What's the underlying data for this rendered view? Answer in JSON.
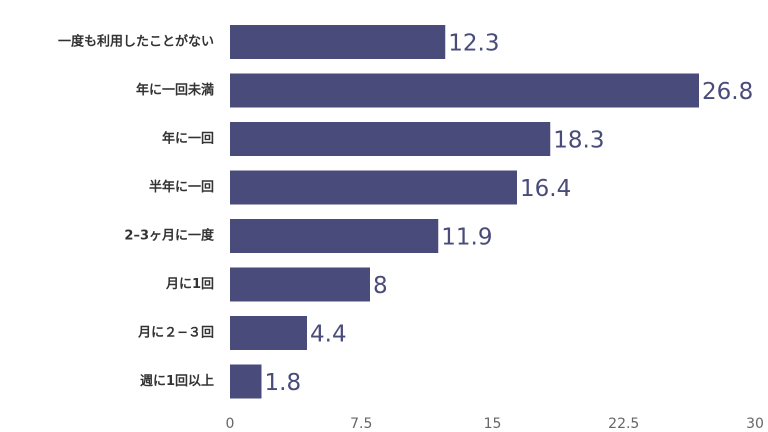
{
  "chart_data": {
    "type": "barh",
    "categories": [
      "一度も利用したことがない",
      "年に一回未満",
      "年に一回",
      "半年に一回",
      "2–3ヶ月に一度",
      "月に1回",
      "月に２−３回",
      "週に1回以上"
    ],
    "values": [
      12.3,
      26.8,
      18.3,
      16.4,
      11.9,
      8,
      4.4,
      1.8
    ],
    "color": "#494b7b",
    "xlim": [
      0,
      30
    ],
    "xticks": [
      0,
      7.5,
      15,
      22.5,
      30
    ],
    "grid": false
  }
}
